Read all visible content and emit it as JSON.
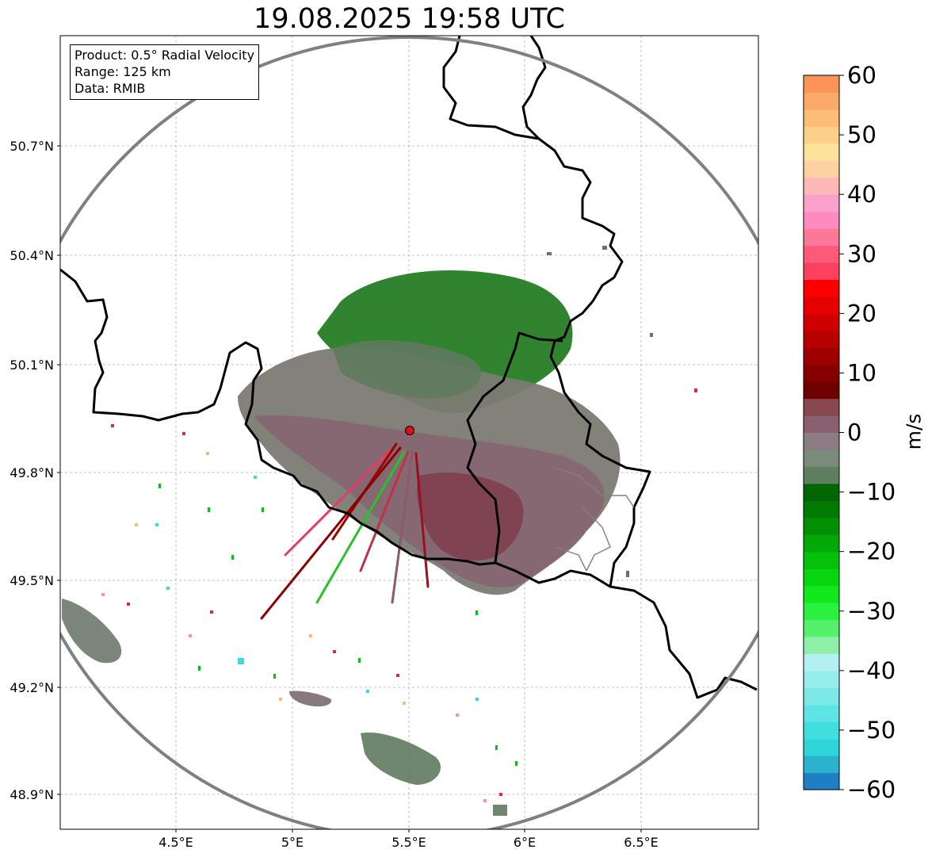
{
  "title": "19.08.2025 19:58 UTC",
  "info": {
    "product": "Product: 0.5° Radial Velocity",
    "range": "Range: 125 km",
    "data": "Data: RMIB"
  },
  "axes": {
    "lon_ticks": [
      "4.5°E",
      "5°E",
      "5.5°E",
      "6°E",
      "6.5°E"
    ],
    "lat_ticks": [
      "50.7°N",
      "50.4°N",
      "50.1°N",
      "49.8°N",
      "49.5°N",
      "49.2°N",
      "48.9°N"
    ]
  },
  "radar_site": {
    "name": "radar-site",
    "lon": 5.5,
    "lat": 49.91
  },
  "range_km": 125,
  "colorbar": {
    "label": "m/s",
    "ticks": [
      "60",
      "50",
      "40",
      "30",
      "20",
      "10",
      "0",
      "−10",
      "−20",
      "−30",
      "−40",
      "−50",
      "−60"
    ],
    "min": -60,
    "max": 60,
    "colors_bottom_to_top": [
      "#1f7fc4",
      "#2ab2cf",
      "#2ed6dc",
      "#3fdfe0",
      "#5ee4e4",
      "#7ce8e8",
      "#97ecec",
      "#b3f0f0",
      "#8ef0a8",
      "#55f06c",
      "#2cf040",
      "#10e81a",
      "#08d610",
      "#04c00a",
      "#02a806",
      "#019004",
      "#007a02",
      "#006602",
      "#5e7f5e",
      "#7c8a7c",
      "#8c7c84",
      "#8a6070",
      "#884850",
      "#6e0000",
      "#860000",
      "#9e0000",
      "#b80000",
      "#d00000",
      "#e60000",
      "#fc0000",
      "#fc4060",
      "#fc5a78",
      "#fc7898",
      "#fc8cc0",
      "#fca0cc",
      "#fcb8b8",
      "#fcd2a0",
      "#fde39a",
      "#fcd08a",
      "#fcbc78",
      "#fca868",
      "#fc9458"
    ]
  },
  "colors": {
    "range_ring": "#808080",
    "border": "#000000",
    "grid": "#b0b0b0",
    "radar_dot": "#e01010"
  }
}
